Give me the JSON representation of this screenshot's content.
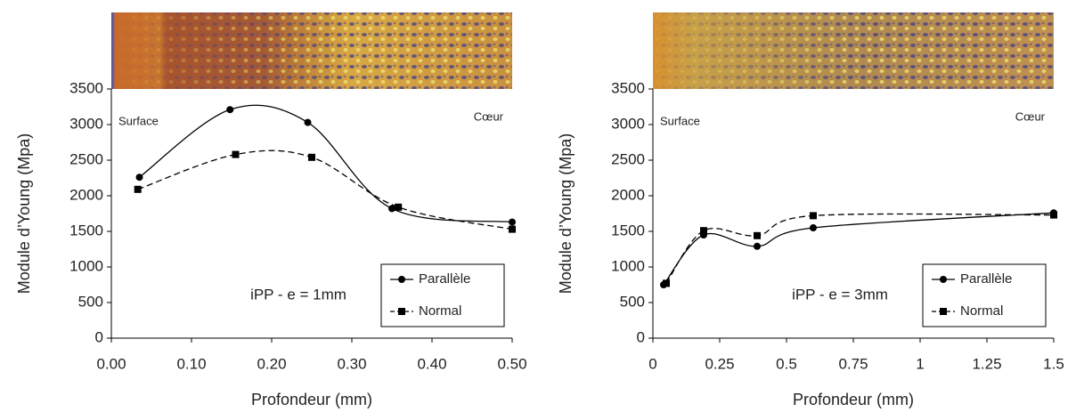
{
  "chart_data": [
    {
      "type": "line",
      "x_label": "Profondeur (mm)",
      "y_label": "Module d’Young (Mpa)",
      "surface_label": "Surface",
      "core_label": "Cœur",
      "note": "iPP - e = 1mm",
      "xlim": [
        0,
        0.5
      ],
      "xticks": [
        {
          "value": 0,
          "label": "0.00"
        },
        {
          "value": 0.1,
          "label": "0.10"
        },
        {
          "value": 0.2,
          "label": "0.20"
        },
        {
          "value": 0.3,
          "label": "0.30"
        },
        {
          "value": 0.4,
          "label": "0.40"
        },
        {
          "value": 0.5,
          "label": "0.50"
        }
      ],
      "ylim": [
        0,
        3500
      ],
      "yticks": [
        0,
        500,
        1000,
        1500,
        2000,
        2500,
        3000,
        3500
      ],
      "grid": false,
      "series": [
        {
          "name": "Parallèle",
          "color": "#000000",
          "line_style": "solid",
          "marker": "circle",
          "x": [
            0.035,
            0.148,
            0.245,
            0.35,
            0.5
          ],
          "values": [
            2260,
            3210,
            3030,
            1820,
            1630
          ]
        },
        {
          "name": "Normal",
          "color": "#000000",
          "line_style": "dashed",
          "marker": "square",
          "x": [
            0.033,
            0.155,
            0.25,
            0.358,
            0.5
          ],
          "values": [
            2090,
            2580,
            2540,
            1840,
            1530
          ]
        }
      ]
    },
    {
      "type": "line",
      "x_label": "Profondeur (mm)",
      "y_label": "Module d’Young (Mpa)",
      "surface_label": "Surface",
      "core_label": "Cœur",
      "note": "iPP - e = 3mm",
      "xlim": [
        0,
        1.5
      ],
      "xticks": [
        0,
        0.25,
        0.5,
        0.75,
        1,
        1.25,
        1.5
      ],
      "ylim": [
        0,
        3500
      ],
      "yticks": [
        0,
        500,
        1000,
        1500,
        2000,
        2500,
        3000,
        3500
      ],
      "grid": false,
      "series": [
        {
          "name": "Parallèle",
          "color": "#000000",
          "line_style": "solid",
          "marker": "circle",
          "x": [
            0.04,
            0.19,
            0.39,
            0.6,
            1.5
          ],
          "values": [
            750,
            1450,
            1290,
            1550,
            1760
          ]
        },
        {
          "name": "Normal",
          "color": "#000000",
          "line_style": "dashed",
          "marker": "square",
          "x": [
            0.05,
            0.19,
            0.39,
            0.6,
            1.5
          ],
          "values": [
            770,
            1510,
            1440,
            1720,
            1730
          ]
        }
      ]
    }
  ]
}
